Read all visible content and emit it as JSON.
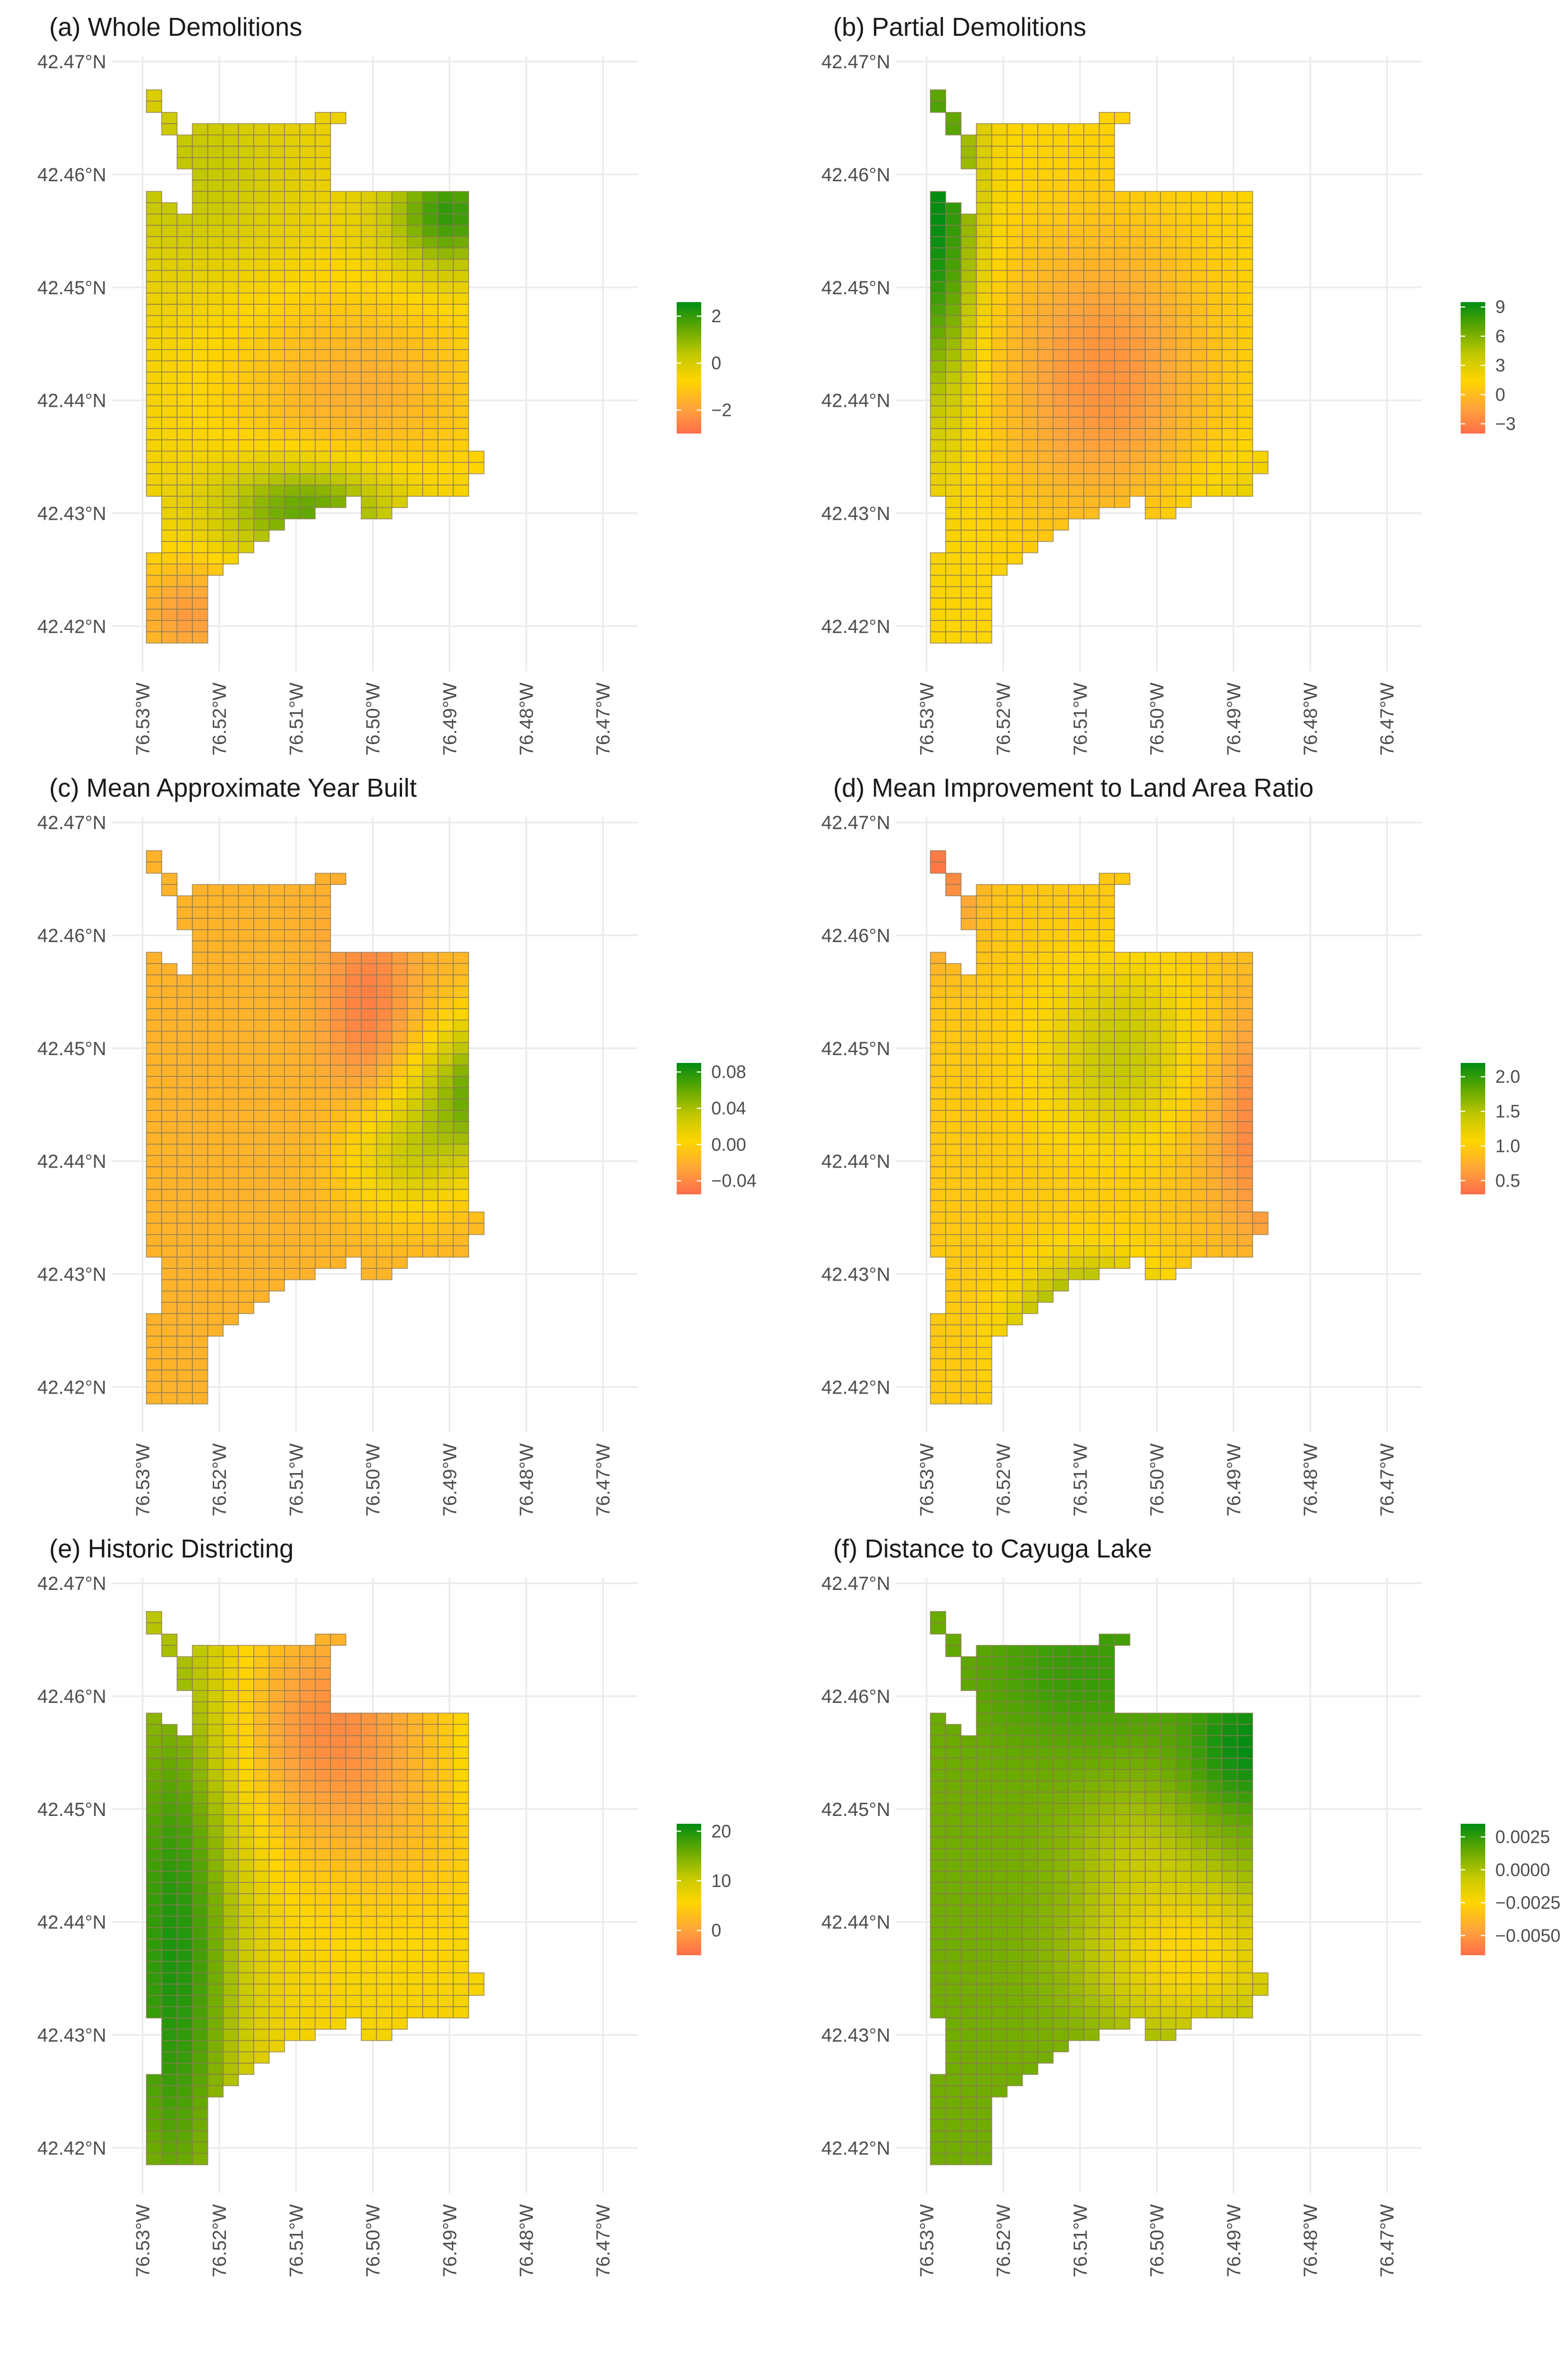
{
  "figure": {
    "panels": [
      {
        "id": "a",
        "title": "(a) Whole Demolitions",
        "legend": {
          "labels": [
            "2",
            "0",
            "−2"
          ],
          "values": [
            2,
            0,
            -2
          ],
          "range": [
            -3,
            2.6
          ]
        },
        "field": {
          "base": -0.5,
          "bumps": [
            {
              "lon": -76.4885,
              "lat": 42.4565,
              "amp": 3.1,
              "sx": 0.006,
              "sy": 0.0035
            },
            {
              "lon": -76.5085,
              "lat": 42.4305,
              "amp": 2.2,
              "sx": 0.008,
              "sy": 0.003
            },
            {
              "lon": -76.4785,
              "lat": 42.4565,
              "amp": -2.6,
              "sx": 0.006,
              "sy": 0.004
            },
            {
              "lon": -76.502,
              "lat": 42.441,
              "amp": -1.2,
              "sx": 0.012,
              "sy": 0.006
            },
            {
              "lon": -76.524,
              "lat": 42.421,
              "amp": -1.6,
              "sx": 0.006,
              "sy": 0.0035
            },
            {
              "lon": -76.525,
              "lat": 42.46,
              "amp": 0.9,
              "sx": 0.01,
              "sy": 0.006
            }
          ]
        }
      },
      {
        "id": "b",
        "title": "(b) Partial Demolitions",
        "legend": {
          "labels": [
            "9",
            "6",
            "3",
            "0",
            "−3"
          ],
          "values": [
            9,
            6,
            3,
            0,
            -3
          ],
          "range": [
            -4,
            9.5
          ]
        },
        "field": {
          "base": 1.5,
          "bumps": [
            {
              "lon": -76.5285,
              "lat": 42.4565,
              "amp": 8.0,
              "sx": 0.0035,
              "sy": 0.012
            },
            {
              "lon": -76.507,
              "lat": 42.442,
              "amp": -3.8,
              "sx": 0.01,
              "sy": 0.009
            },
            {
              "lon": -76.4775,
              "lat": 42.4545,
              "amp": -2.0,
              "sx": 0.004,
              "sy": 0.004
            },
            {
              "lon": -76.488,
              "lat": 42.43,
              "amp": 1.3,
              "sx": 0.008,
              "sy": 0.004
            }
          ]
        }
      },
      {
        "id": "c",
        "title": "(c) Mean Approximate Year Built",
        "legend": {
          "labels": [
            "0.08",
            "0.04",
            "0.00",
            "−0.04"
          ],
          "values": [
            0.08,
            0.04,
            0.0,
            -0.04
          ],
          "range": [
            -0.055,
            0.09
          ]
        },
        "field": {
          "base": -0.018,
          "bumps": [
            {
              "lon": -76.4815,
              "lat": 42.4465,
              "amp": 0.1,
              "sx": 0.008,
              "sy": 0.0045
            },
            {
              "lon": -76.4955,
              "lat": 42.4405,
              "amp": 0.04,
              "sx": 0.006,
              "sy": 0.004
            },
            {
              "lon": -76.5005,
              "lat": 42.4535,
              "amp": -0.03,
              "sx": 0.004,
              "sy": 0.006
            }
          ]
        }
      },
      {
        "id": "d",
        "title": "(d) Mean Improvement to Land Area Ratio",
        "legend": {
          "labels": [
            "2.0",
            "1.5",
            "1.0",
            "0.5"
          ],
          "values": [
            2.0,
            1.5,
            1.0,
            0.5
          ],
          "range": [
            0.3,
            2.2
          ]
        },
        "field": {
          "base": 0.95,
          "bumps": [
            {
              "lon": -76.5085,
              "lat": 42.4245,
              "amp": 1.3,
              "sx": 0.006,
              "sy": 0.004
            },
            {
              "lon": -76.5045,
              "lat": 42.4495,
              "amp": 0.5,
              "sx": 0.007,
              "sy": 0.0055
            },
            {
              "lon": -76.4815,
              "lat": 42.4435,
              "amp": -0.7,
              "sx": 0.008,
              "sy": 0.008
            },
            {
              "lon": -76.5295,
              "lat": 42.4655,
              "amp": -0.6,
              "sx": 0.004,
              "sy": 0.005
            }
          ]
        }
      },
      {
        "id": "e",
        "title": "(e) Historic Districting",
        "legend": {
          "labels": [
            "20",
            "10",
            "0"
          ],
          "values": [
            20,
            10,
            0
          ],
          "range": [
            -5,
            21.5
          ]
        },
        "field": {
          "base": 6.5,
          "bumps": [
            {
              "lon": -76.526,
              "lat": 42.437,
              "amp": 13.5,
              "sx": 0.006,
              "sy": 0.022
            },
            {
              "lon": -76.4825,
              "lat": 42.4535,
              "amp": 4.0,
              "sx": 0.004,
              "sy": 0.004
            },
            {
              "lon": -76.5055,
              "lat": 42.4575,
              "amp": -8.5,
              "sx": 0.009,
              "sy": 0.007
            },
            {
              "lon": -76.496,
              "lat": 42.447,
              "amp": -2.5,
              "sx": 0.01,
              "sy": 0.006
            }
          ]
        }
      },
      {
        "id": "f",
        "title": "(f) Distance to Cayuga Lake",
        "legend": {
          "labels": [
            "0.0025",
            "0.0000",
            "−0.0025",
            "−0.0050"
          ],
          "values": [
            0.0025,
            0.0,
            -0.0025,
            -0.005
          ],
          "range": [
            -0.0065,
            0.0035
          ]
        },
        "field": {
          "base": 0.0012,
          "bumps": [
            {
              "lon": -76.4885,
              "lat": 42.4555,
              "amp": 0.0022,
              "sx": 0.005,
              "sy": 0.004
            },
            {
              "lon": -76.5095,
              "lat": 42.4625,
              "amp": 0.0012,
              "sx": 0.01,
              "sy": 0.005
            },
            {
              "lon": -76.473,
              "lat": 42.431,
              "amp": -0.0082,
              "sx": 0.006,
              "sy": 0.004
            },
            {
              "lon": -76.496,
              "lat": 42.437,
              "amp": -0.0038,
              "sx": 0.009,
              "sy": 0.005
            },
            {
              "lon": -76.503,
              "lat": 42.447,
              "amp": -0.0012,
              "sx": 0.006,
              "sy": 0.004
            }
          ]
        }
      }
    ],
    "axes": {
      "lon_ticks": [
        "76.53°W",
        "76.52°W",
        "76.51°W",
        "76.50°W",
        "76.49°W",
        "76.48°W",
        "76.47°W"
      ],
      "lat_ticks": [
        "42.47°N",
        "42.46°N",
        "42.45°N",
        "42.44°N",
        "42.43°N",
        "42.42°N"
      ],
      "lon_values": [
        -76.53,
        -76.52,
        -76.51,
        -76.5,
        -76.49,
        -76.48,
        -76.47
      ],
      "lat_values": [
        42.47,
        42.46,
        42.45,
        42.44,
        42.43,
        42.42
      ]
    },
    "grid": {
      "lon_start": -76.5295,
      "lat_start": 42.4185,
      "cell_lon": 0.002,
      "cell_lat": 0.001,
      "rows": [
        {
          "lat_index": 48,
          "cols": [
            [
              0,
              0
            ]
          ]
        },
        {
          "lat_index": 47,
          "cols": [
            [
              0,
              0
            ]
          ]
        },
        {
          "lat_index": 46,
          "cols": [
            [
              1,
              1
            ],
            [
              11,
              12
            ]
          ]
        },
        {
          "lat_index": 45,
          "cols": [
            [
              1,
              1
            ],
            [
              3,
              11
            ]
          ]
        },
        {
          "lat_index": 44,
          "cols": [
            [
              2,
              11
            ]
          ]
        },
        {
          "lat_index": 43,
          "cols": [
            [
              2,
              11
            ]
          ]
        },
        {
          "lat_index": 42,
          "cols": [
            [
              2,
              11
            ]
          ]
        },
        {
          "lat_index": 41,
          "cols": [
            [
              3,
              11
            ]
          ]
        },
        {
          "lat_index": 40,
          "cols": [
            [
              3,
              11
            ]
          ]
        },
        {
          "lat_index": 39,
          "cols": [
            [
              0,
              0
            ],
            [
              3,
              20
            ]
          ]
        },
        {
          "lat_index": 38,
          "cols": [
            [
              0,
              1
            ],
            [
              3,
              20
            ]
          ]
        },
        {
          "lat_index": 37,
          "cols": [
            [
              0,
              20
            ]
          ]
        },
        {
          "lat_index": 36,
          "cols": [
            [
              0,
              20
            ]
          ]
        },
        {
          "lat_index": 35,
          "cols": [
            [
              0,
              20
            ]
          ]
        },
        {
          "lat_index": 34,
          "cols": [
            [
              0,
              20
            ]
          ]
        },
        {
          "lat_index": 33,
          "cols": [
            [
              0,
              20
            ]
          ]
        },
        {
          "lat_index": 32,
          "cols": [
            [
              0,
              20
            ]
          ]
        },
        {
          "lat_index": 31,
          "cols": [
            [
              0,
              20
            ]
          ]
        },
        {
          "lat_index": 30,
          "cols": [
            [
              0,
              20
            ]
          ]
        },
        {
          "lat_index": 29,
          "cols": [
            [
              0,
              20
            ]
          ]
        },
        {
          "lat_index": 28,
          "cols": [
            [
              0,
              20
            ]
          ]
        },
        {
          "lat_index": 27,
          "cols": [
            [
              0,
              20
            ]
          ]
        },
        {
          "lat_index": 26,
          "cols": [
            [
              0,
              20
            ]
          ]
        },
        {
          "lat_index": 25,
          "cols": [
            [
              0,
              20
            ]
          ]
        },
        {
          "lat_index": 24,
          "cols": [
            [
              0,
              20
            ]
          ]
        },
        {
          "lat_index": 23,
          "cols": [
            [
              0,
              20
            ]
          ]
        },
        {
          "lat_index": 22,
          "cols": [
            [
              0,
              20
            ]
          ]
        },
        {
          "lat_index": 21,
          "cols": [
            [
              0,
              20
            ]
          ]
        },
        {
          "lat_index": 20,
          "cols": [
            [
              0,
              20
            ]
          ]
        },
        {
          "lat_index": 19,
          "cols": [
            [
              0,
              20
            ]
          ]
        },
        {
          "lat_index": 18,
          "cols": [
            [
              0,
              20
            ]
          ]
        },
        {
          "lat_index": 17,
          "cols": [
            [
              0,
              20
            ]
          ]
        },
        {
          "lat_index": 16,
          "cols": [
            [
              0,
              21
            ]
          ]
        },
        {
          "lat_index": 15,
          "cols": [
            [
              0,
              21
            ]
          ]
        },
        {
          "lat_index": 14,
          "cols": [
            [
              0,
              20
            ]
          ]
        },
        {
          "lat_index": 13,
          "cols": [
            [
              0,
              20
            ]
          ]
        },
        {
          "lat_index": 12,
          "cols": [
            [
              1,
              12
            ],
            [
              14,
              16
            ]
          ]
        },
        {
          "lat_index": 11,
          "cols": [
            [
              1,
              10
            ],
            [
              14,
              15
            ]
          ]
        },
        {
          "lat_index": 10,
          "cols": [
            [
              1,
              8
            ]
          ]
        },
        {
          "lat_index": 9,
          "cols": [
            [
              1,
              7
            ]
          ]
        },
        {
          "lat_index": 8,
          "cols": [
            [
              1,
              6
            ]
          ]
        },
        {
          "lat_index": 7,
          "cols": [
            [
              0,
              5
            ]
          ]
        },
        {
          "lat_index": 6,
          "cols": [
            [
              0,
              4
            ]
          ]
        },
        {
          "lat_index": 5,
          "cols": [
            [
              0,
              3
            ]
          ]
        },
        {
          "lat_index": 4,
          "cols": [
            [
              0,
              3
            ]
          ]
        },
        {
          "lat_index": 3,
          "cols": [
            [
              0,
              3
            ]
          ]
        },
        {
          "lat_index": 2,
          "cols": [
            [
              0,
              3
            ]
          ]
        },
        {
          "lat_index": 1,
          "cols": [
            [
              0,
              3
            ]
          ]
        },
        {
          "lat_index": 0,
          "cols": [
            [
              0,
              3
            ]
          ]
        }
      ]
    },
    "colors": {
      "scale": [
        "#ff6e4a",
        "#ffa63a",
        "#ffd500",
        "#c3c800",
        "#62a800",
        "#008c14"
      ],
      "cell_border": "#8a7a55",
      "gridline": "#ebebeb",
      "axis_text": "#4d4d4d",
      "title_text": "#1a1a1a"
    }
  }
}
